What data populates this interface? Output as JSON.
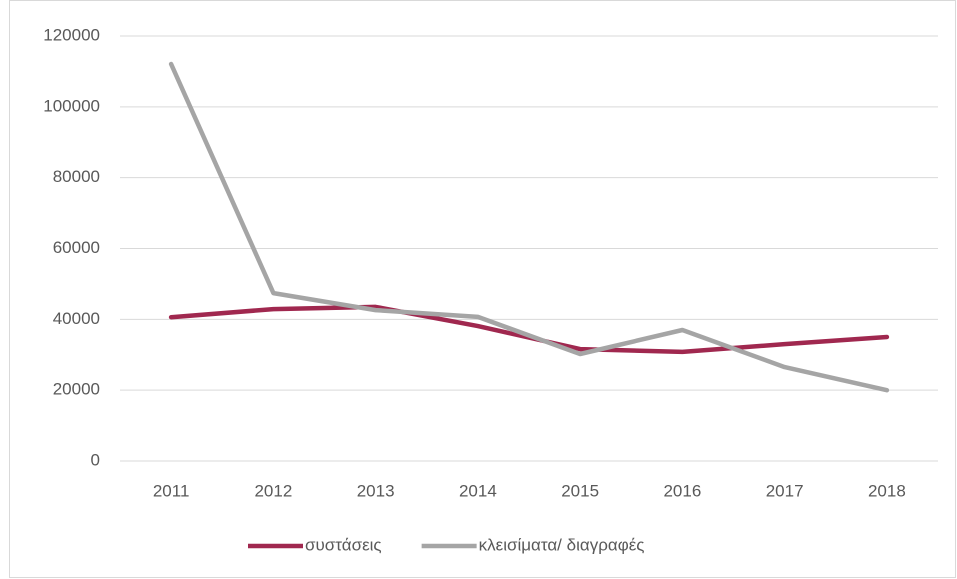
{
  "chart_data": {
    "type": "line",
    "categories": [
      "2011",
      "2012",
      "2013",
      "2014",
      "2015",
      "2016",
      "2017",
      "2018"
    ],
    "series": [
      {
        "name": "συστάσεις",
        "color": "#a0284f",
        "values": [
          40600,
          42900,
          43500,
          38100,
          31600,
          30800,
          33000,
          35000
        ]
      },
      {
        "name": "κλεισίματα/ διαγραφές",
        "color": "#a5a5a5",
        "values": [
          112100,
          47400,
          42600,
          40700,
          30200,
          37000,
          26500,
          20000
        ]
      }
    ],
    "ylim": [
      0,
      120000
    ],
    "yticks": [
      0,
      20000,
      40000,
      60000,
      80000,
      100000,
      120000
    ],
    "grid": true,
    "legend": "bottom"
  }
}
